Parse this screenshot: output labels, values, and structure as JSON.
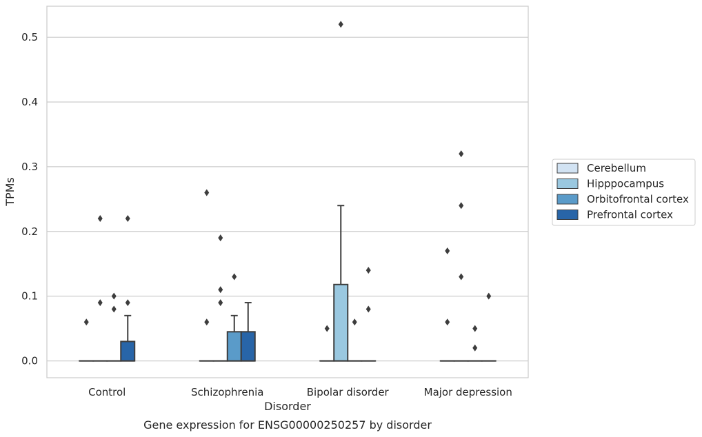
{
  "chart_data": {
    "type": "box",
    "xlabel": "Disorder",
    "ylabel": "TPMs",
    "caption": "Gene expression for ENSG00000250257 by disorder",
    "ylim": [
      -0.026,
      0.548
    ],
    "yticks": [
      "0.0",
      "0.1",
      "0.2",
      "0.3",
      "0.4",
      "0.5"
    ],
    "grid": "horizontal",
    "legend_position": "right",
    "categories": [
      "Control",
      "Schizophrenia",
      "Bipolar disorder",
      "Major depression"
    ],
    "series": [
      {
        "name": "Cerebellum",
        "color": "#d2e3f3",
        "boxes": [
          {
            "q1": 0,
            "median": 0,
            "q3": 0,
            "whislo": 0,
            "whishi": 0,
            "fliers": [
              0.06
            ]
          },
          {
            "q1": 0,
            "median": 0,
            "q3": 0,
            "whislo": 0,
            "whishi": 0,
            "fliers": [
              0.06,
              0.26
            ]
          },
          {
            "q1": 0,
            "median": 0,
            "q3": 0,
            "whislo": 0,
            "whishi": 0,
            "fliers": [
              0.05
            ]
          },
          {
            "q1": 0,
            "median": 0,
            "q3": 0,
            "whislo": 0,
            "whishi": 0,
            "fliers": [
              0.06,
              0.17
            ]
          }
        ]
      },
      {
        "name": "Hipppocampus",
        "color": "#9ac8e0",
        "boxes": [
          {
            "q1": 0,
            "median": 0,
            "q3": 0,
            "whislo": 0,
            "whishi": 0,
            "fliers": [
              0.09,
              0.22
            ]
          },
          {
            "q1": 0,
            "median": 0,
            "q3": 0,
            "whislo": 0,
            "whishi": 0,
            "fliers": [
              0.09,
              0.19,
              0.11
            ]
          },
          {
            "q1": 0,
            "median": 0,
            "q3": 0.118,
            "whislo": 0,
            "whishi": 0.24,
            "fliers": [
              0.52
            ]
          },
          {
            "q1": 0,
            "median": 0,
            "q3": 0,
            "whislo": 0,
            "whishi": 0,
            "fliers": [
              0.32,
              0.24,
              0.13
            ]
          }
        ]
      },
      {
        "name": "Orbitofrontal cortex",
        "color": "#5a9bc9",
        "boxes": [
          {
            "q1": 0,
            "median": 0,
            "q3": 0,
            "whislo": 0,
            "whishi": 0,
            "fliers": [
              0.1,
              0.08
            ]
          },
          {
            "q1": 0,
            "median": 0,
            "q3": 0.045,
            "whislo": 0,
            "whishi": 0.07,
            "fliers": [
              0.13
            ]
          },
          {
            "q1": 0,
            "median": 0,
            "q3": 0,
            "whislo": 0,
            "whishi": 0,
            "fliers": [
              0.06
            ]
          },
          {
            "q1": 0,
            "median": 0,
            "q3": 0,
            "whislo": 0,
            "whishi": 0,
            "fliers": [
              0.05,
              0.02
            ]
          }
        ]
      },
      {
        "name": "Prefrontal cortex",
        "color": "#2865a8",
        "boxes": [
          {
            "q1": 0,
            "median": 0,
            "q3": 0.03,
            "whislo": 0,
            "whishi": 0.07,
            "fliers": [
              0.09,
              0.22
            ]
          },
          {
            "q1": 0,
            "median": 0,
            "q3": 0.045,
            "whislo": 0,
            "whishi": 0.09,
            "fliers": []
          },
          {
            "q1": 0,
            "median": 0,
            "q3": 0,
            "whislo": 0,
            "whishi": 0,
            "fliers": [
              0.14,
              0.08
            ]
          },
          {
            "q1": 0,
            "median": 0,
            "q3": 0,
            "whislo": 0,
            "whishi": 0,
            "fliers": [
              0.1
            ]
          }
        ]
      }
    ]
  }
}
